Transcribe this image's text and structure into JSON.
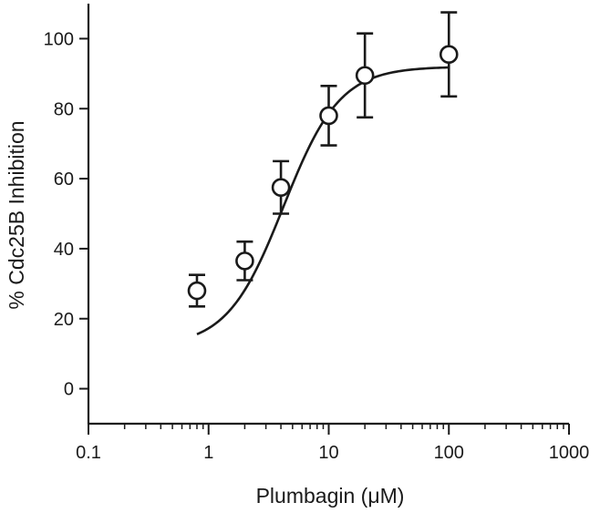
{
  "chart_data": {
    "type": "scatter",
    "title": "",
    "xlabel": "Plumbagin (μM)",
    "ylabel": "% Cdc25B Inhibition",
    "xscale": "log",
    "xlim": [
      0.1,
      1000
    ],
    "ylim": [
      -10,
      110
    ],
    "x_ticks": [
      0.1,
      1,
      10,
      100,
      1000
    ],
    "x_tick_labels": [
      "0.1",
      "1",
      "10",
      "100",
      "1000"
    ],
    "y_ticks": [
      0,
      20,
      40,
      60,
      80,
      100
    ],
    "y_tick_labels": [
      "0",
      "20",
      "40",
      "60",
      "80",
      "100"
    ],
    "grid": false,
    "legend": "none",
    "series": [
      {
        "marker": "open-circle",
        "error_bars": true,
        "points": [
          {
            "x": 0.8,
            "y": 28,
            "err": 4.5
          },
          {
            "x": 2,
            "y": 36.5,
            "err": 5.5
          },
          {
            "x": 4,
            "y": 57.5,
            "err": 7.5
          },
          {
            "x": 10,
            "y": 78,
            "err": 8.5
          },
          {
            "x": 20,
            "y": 89.5,
            "err": 12
          },
          {
            "x": 100,
            "y": 95.5,
            "err": 12
          }
        ]
      }
    ],
    "fit_curve": {
      "model": "sigmoidal dose-response",
      "bottom": 12,
      "top": 92,
      "ec50": 4.2,
      "hill": 1.85,
      "x_range": [
        0.8,
        100
      ]
    }
  }
}
